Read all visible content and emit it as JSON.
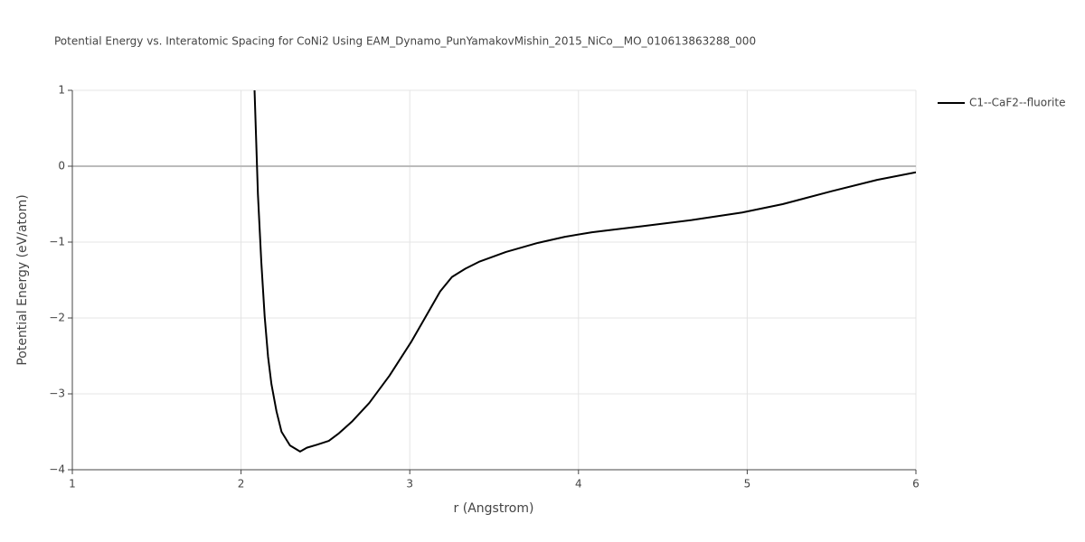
{
  "chart_data": {
    "type": "line",
    "title": "Potential Energy vs. Interatomic Spacing for CoNi2 Using EAM_Dynamo_PunYamakovMishin_2015_NiCo__MO_010613863288_000",
    "x_label": "r (Angstrom)",
    "y_label": "Potential Energy (eV/atom)",
    "xlim": [
      1,
      6
    ],
    "ylim": [
      -4,
      1
    ],
    "xticks": [
      1,
      2,
      3,
      4,
      5,
      6
    ],
    "yticks": [
      {
        "value": -4,
        "label": "−4"
      },
      {
        "value": -3,
        "label": "−3"
      },
      {
        "value": -2,
        "label": "−2"
      },
      {
        "value": -1,
        "label": "−1"
      },
      0,
      1
    ],
    "grid": true,
    "legend": "right",
    "x": [
      2.08,
      2.1,
      2.12,
      2.14,
      2.16,
      2.18,
      2.21,
      2.24,
      2.29,
      2.35,
      2.39,
      2.45,
      2.52,
      2.58,
      2.66,
      2.76,
      2.88,
      3.01,
      3.09,
      3.18,
      3.25,
      3.33,
      3.41,
      3.57,
      3.76,
      3.92,
      4.08,
      4.38,
      4.67,
      4.97,
      5.21,
      5.5,
      5.77,
      6.0
    ],
    "series": [
      {
        "name": "C1--CaF2--fluorite",
        "color": "#000000",
        "values": [
          1.0,
          -0.37,
          -1.26,
          -1.98,
          -2.51,
          -2.87,
          -3.23,
          -3.5,
          -3.68,
          -3.76,
          -3.71,
          -3.67,
          -3.62,
          -3.52,
          -3.36,
          -3.12,
          -2.76,
          -2.31,
          -2.0,
          -1.65,
          -1.46,
          -1.35,
          -1.26,
          -1.13,
          -1.01,
          -0.93,
          -0.87,
          -0.79,
          -0.71,
          -0.61,
          -0.5,
          -0.33,
          -0.18,
          -0.08
        ]
      }
    ]
  }
}
